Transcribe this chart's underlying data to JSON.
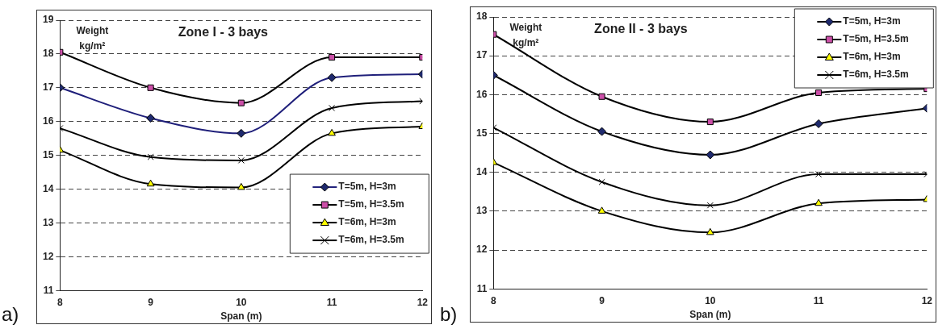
{
  "chart_data": [
    {
      "type": "line",
      "title": "Zone I - 3 bays",
      "xlabel": "Span (m)",
      "ylabel": "Weight kg/m²",
      "x": [
        8,
        9,
        10,
        11,
        12
      ],
      "xlim": [
        8,
        12
      ],
      "xticks": [
        8,
        9,
        10,
        11,
        12
      ],
      "ylim": [
        11,
        19
      ],
      "yticks": [
        11,
        12,
        13,
        14,
        15,
        16,
        17,
        18,
        19
      ],
      "grid": "y",
      "legend": "right",
      "annotations": [
        "a)"
      ],
      "series": [
        {
          "name": "T=5m, H=3m",
          "color": "#1f1f7a",
          "colors": [
            "#1f2a6e",
            "#1f2a6e",
            "#1f2a6e",
            "#1f2a6e",
            "#1f2a6e"
          ],
          "marker": "diamond",
          "values": [
            17.0,
            16.1,
            15.65,
            17.3,
            17.4
          ]
        },
        {
          "name": "T=5m, H=3.5m",
          "color": "#000000",
          "colors": [
            "#cc4fa8",
            "#cc4fa8",
            "#cc4fa8",
            "#cc4fa8",
            "#cc4fa8"
          ],
          "marker": "square",
          "values": [
            18.05,
            17.0,
            16.55,
            17.9,
            17.9
          ]
        },
        {
          "name": "T=6m, H=3m",
          "color": "#000000",
          "colors": [
            "#ffff00",
            "#ffff00",
            "#ffff00",
            "#ffff00",
            "#ffff00"
          ],
          "marker": "triangle",
          "values": [
            15.15,
            14.15,
            14.05,
            15.65,
            15.85
          ]
        },
        {
          "name": "T=6m, H=3.5m",
          "color": "#000000",
          "colors": [
            "#000000",
            "#000000",
            "#000000",
            "#000000",
            "#000000"
          ],
          "marker": "cross",
          "values": [
            15.8,
            14.95,
            14.85,
            16.4,
            16.6
          ]
        }
      ]
    },
    {
      "type": "line",
      "title": "Zone II - 3 bays",
      "xlabel": "Span (m)",
      "ylabel": "Weight kg/m²",
      "x": [
        8,
        9,
        10,
        11,
        12
      ],
      "xlim": [
        8,
        12
      ],
      "xticks": [
        8,
        9,
        10,
        11,
        12
      ],
      "ylim": [
        11,
        18
      ],
      "yticks": [
        11,
        12,
        13,
        14,
        15,
        16,
        17,
        18
      ],
      "grid": "y",
      "legend": "top right",
      "annotations": [
        "b)"
      ],
      "series": [
        {
          "name": "T=5m, H=3m",
          "color": "#000000",
          "colors": [
            "#1f2a6e",
            "#1f2a6e",
            "#1f2a6e",
            "#1f2a6e",
            "#1f2a6e"
          ],
          "marker": "diamond",
          "values": [
            16.5,
            15.05,
            14.45,
            15.25,
            15.65
          ]
        },
        {
          "name": "T=5m, H=3.5m",
          "color": "#000000",
          "colors": [
            "#cc4fa8",
            "#cc4fa8",
            "#cc4fa8",
            "#cc4fa8",
            "#cc4fa8"
          ],
          "marker": "square",
          "values": [
            17.55,
            15.95,
            15.3,
            16.05,
            16.15
          ]
        },
        {
          "name": "T=6m, H=3m",
          "color": "#000000",
          "colors": [
            "#ffff00",
            "#ffff00",
            "#ffff00",
            "#ffff00",
            "#ffff00"
          ],
          "marker": "triangle",
          "values": [
            14.25,
            13.0,
            12.45,
            13.2,
            13.3
          ]
        },
        {
          "name": "T=6m, H=3.5m",
          "color": "#000000",
          "colors": [
            "#000000",
            "#000000",
            "#000000",
            "#000000",
            "#000000"
          ],
          "marker": "cross",
          "values": [
            15.15,
            13.75,
            13.15,
            13.95,
            13.95
          ]
        }
      ]
    }
  ]
}
